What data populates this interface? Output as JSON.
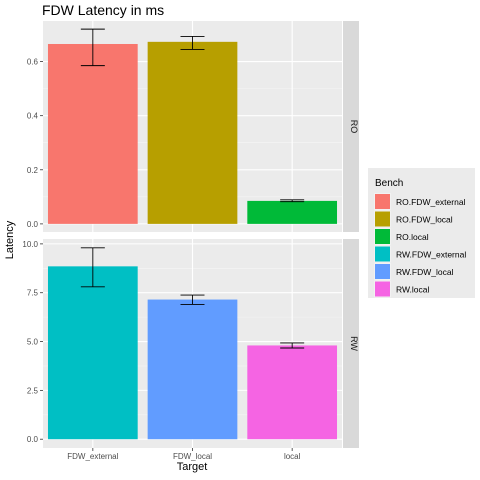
{
  "chart_data": {
    "type": "bar",
    "title": "FDW Latency in ms",
    "xlabel": "Target",
    "ylabel": "Latency",
    "categories": [
      "FDW_external",
      "FDW_local",
      "local"
    ],
    "legend": {
      "title": "Bench",
      "position": "right",
      "entries": [
        {
          "name": "RO.FDW_external",
          "color": "#F8766D"
        },
        {
          "name": "RO.FDW_local",
          "color": "#B79F00"
        },
        {
          "name": "RO.local",
          "color": "#00BA38"
        },
        {
          "name": "RW.FDW_external",
          "color": "#00BFC4"
        },
        {
          "name": "RW.FDW_local",
          "color": "#619CFF"
        },
        {
          "name": "RW.local",
          "color": "#F564E3"
        }
      ]
    },
    "panels": [
      {
        "strip": "RO",
        "ylim": [
          -0.03,
          0.75
        ],
        "yticks": [
          0.0,
          0.2,
          0.4,
          0.6
        ],
        "ytick_labels": [
          "0.0",
          "0.2",
          "0.4",
          "0.6"
        ],
        "bars": [
          {
            "category": "FDW_external",
            "series": "RO.FDW_external",
            "value": 0.665,
            "err_low": 0.585,
            "err_high": 0.72
          },
          {
            "category": "FDW_local",
            "series": "RO.FDW_local",
            "value": 0.673,
            "err_low": 0.645,
            "err_high": 0.693
          },
          {
            "category": "local",
            "series": "RO.local",
            "value": 0.085,
            "err_low": 0.082,
            "err_high": 0.089
          }
        ]
      },
      {
        "strip": "RW",
        "ylim": [
          -0.45,
          10.25
        ],
        "yticks": [
          0.0,
          2.5,
          5.0,
          7.5,
          10.0
        ],
        "ytick_labels": [
          "0.0",
          "2.5",
          "5.0",
          "7.5",
          "10.0"
        ],
        "bars": [
          {
            "category": "FDW_external",
            "series": "RW.FDW_external",
            "value": 8.85,
            "err_low": 7.8,
            "err_high": 9.8
          },
          {
            "category": "FDW_local",
            "series": "RW.FDW_local",
            "value": 7.15,
            "err_low": 6.9,
            "err_high": 7.38
          },
          {
            "category": "local",
            "series": "RW.local",
            "value": 4.8,
            "err_low": 4.67,
            "err_high": 4.93
          }
        ]
      }
    ],
    "grid": true,
    "panel_background": "#EBEBEB",
    "strip_background": "#D9D9D9"
  }
}
